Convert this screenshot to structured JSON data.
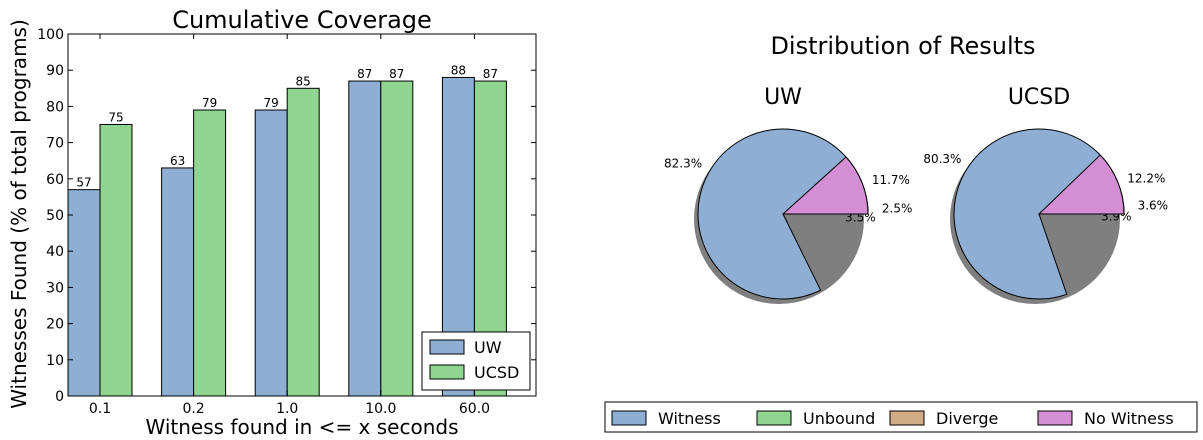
{
  "chart_data": [
    {
      "type": "bar",
      "title": "Cumulative Coverage",
      "xlabel": "Witness found in <= x seconds",
      "ylabel": "Witnesses Found (% of total programs)",
      "categories": [
        "0.1",
        "0.2",
        "1.0",
        "10.0",
        "60.0"
      ],
      "ylim": [
        0,
        100
      ],
      "yticks": [
        0,
        10,
        20,
        30,
        40,
        50,
        60,
        70,
        80,
        90,
        100
      ],
      "series": [
        {
          "name": "UW",
          "values": [
            57,
            63,
            79,
            87,
            88
          ],
          "color": "#8eaed4"
        },
        {
          "name": "UCSD",
          "values": [
            75,
            79,
            85,
            87,
            87
          ],
          "color": "#8fd48f"
        }
      ],
      "legend": "lower-right",
      "grid": false
    },
    {
      "type": "pie",
      "title": "Distribution of Results",
      "legend": "bottom",
      "categories": [
        "Witness",
        "Unbound",
        "Diverge",
        "No Witness"
      ],
      "colors": [
        "#8eaed4",
        "#8fd48f",
        "#d1ad86",
        "#d48fd4"
      ],
      "pies": [
        {
          "name": "UW",
          "values": [
            82.3,
            3.5,
            2.5,
            11.7
          ],
          "labels": [
            "82.3%",
            "3.5%",
            "2.5%",
            "11.7%"
          ]
        },
        {
          "name": "UCSD",
          "values": [
            80.3,
            3.9,
            3.6,
            12.2
          ],
          "labels": [
            "80.3%",
            "3.9%",
            "3.6%",
            "12.2%"
          ]
        }
      ]
    }
  ]
}
